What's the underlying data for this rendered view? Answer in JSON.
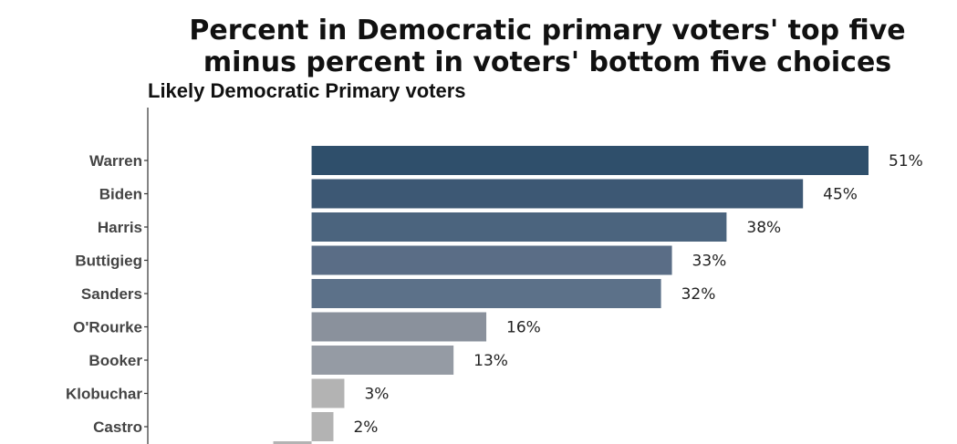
{
  "chart_data": {
    "type": "bar",
    "orientation": "horizontal",
    "title_lines": [
      "Percent in Democratic primary voters' top five",
      "minus percent in voters' bottom five choices"
    ],
    "subtitle": "Likely Democratic Primary voters",
    "categories": [
      "Warren",
      "Biden",
      "Harris",
      "Buttigieg",
      "Sanders",
      "O'Rourke",
      "Booker",
      "Klobuchar",
      "Castro"
    ],
    "values": [
      51,
      45,
      38,
      33,
      32,
      16,
      13,
      3,
      2
    ],
    "value_labels": [
      "51%",
      "45%",
      "38%",
      "33%",
      "32%",
      "16%",
      "13%",
      "3%",
      "2%"
    ],
    "colors": [
      "#2f4f6b",
      "#3d5874",
      "#4b647e",
      "#5a6d86",
      "#5c7189",
      "#8a919c",
      "#959ba4",
      "#b3b3b3",
      "#b3b3b3"
    ],
    "xlim": [
      -15,
      51
    ],
    "grid": false,
    "legend": "none"
  }
}
